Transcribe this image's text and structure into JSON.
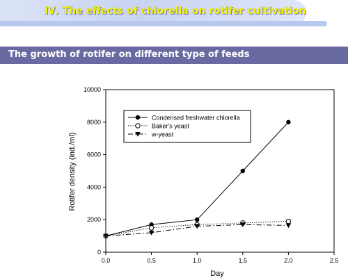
{
  "header": {
    "banner_title": "Ⅳ. The effects of chlorella on rotifer cultivation",
    "section_title": "The growth of rotifer on different type of feeds"
  },
  "chart_data": {
    "type": "line",
    "title": "",
    "xlabel": "Day",
    "ylabel": "Rotifer density (ind./ml)",
    "xlim": [
      0.0,
      2.5
    ],
    "ylim": [
      0,
      10000
    ],
    "xticks": [
      "0.0",
      "0.5",
      "1.0",
      "1.5",
      "2.0",
      "2.5"
    ],
    "yticks": [
      "0",
      "2000",
      "4000",
      "6000",
      "8000",
      "10000"
    ],
    "grid": false,
    "legend_position": "top-left",
    "series": [
      {
        "name": "Condensed freshwater chlorella",
        "marker": "filled-circle",
        "line": "solid",
        "x": [
          0.0,
          0.5,
          1.0,
          1.5,
          2.0
        ],
        "y": [
          1000,
          1700,
          2000,
          5000,
          8000
        ]
      },
      {
        "name": "Baker's yeast",
        "marker": "open-circle",
        "line": "dotted",
        "x": [
          0.0,
          0.5,
          1.0,
          1.5,
          2.0
        ],
        "y": [
          1000,
          1500,
          1700,
          1800,
          1900
        ]
      },
      {
        "name": "w-yeast",
        "marker": "filled-triangle-down",
        "line": "dashdot",
        "x": [
          0.0,
          0.5,
          1.0,
          1.5,
          2.0
        ],
        "y": [
          1000,
          1200,
          1600,
          1700,
          1650
        ]
      }
    ]
  }
}
